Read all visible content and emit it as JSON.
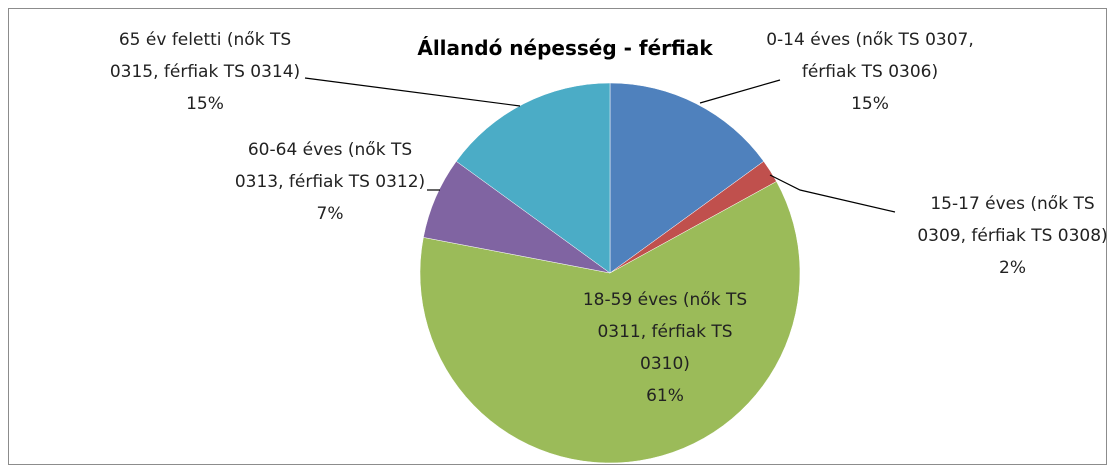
{
  "chart_data": {
    "type": "pie",
    "title": "Állandó népesség - férfiak",
    "categories": [
      "0-14 éves (nők TS 0307, férfiak TS 0306)",
      "15-17 éves (nők TS 0309, férfiak TS 0308)",
      "18-59 éves (nők TS 0311, férfiak TS 0310)",
      "60-64 éves (nők TS 0313, férfiak TS 0312)",
      "65 év feletti (nők TS 0315, férfiak TS 0314)"
    ],
    "values": [
      15,
      2,
      61,
      7,
      15
    ],
    "value_labels": [
      "15%",
      "2%",
      "61%",
      "7%",
      "15%"
    ],
    "colors": [
      "#4f81bd",
      "#c0504d",
      "#9bbb59",
      "#8064a2",
      "#4bacc6"
    ]
  }
}
